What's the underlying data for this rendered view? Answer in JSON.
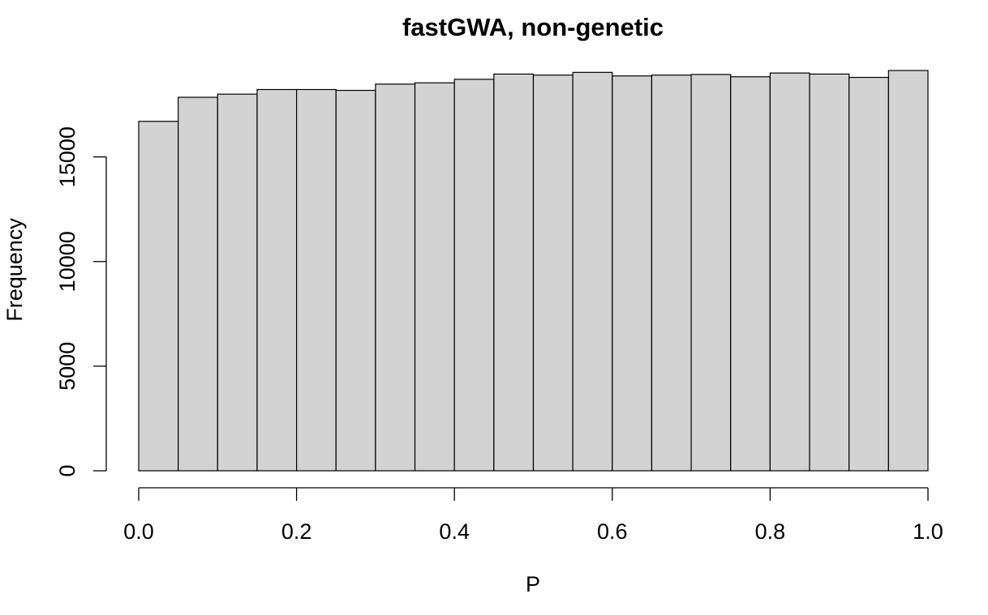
{
  "chart_data": {
    "type": "bar",
    "title": "fastGWA, non-genetic",
    "xlabel": "P",
    "ylabel": "Frequency",
    "bin_edges": [
      0.0,
      0.05,
      0.1,
      0.15,
      0.2,
      0.25,
      0.3,
      0.35,
      0.4,
      0.45,
      0.5,
      0.55,
      0.6,
      0.65,
      0.7,
      0.75,
      0.8,
      0.85,
      0.9,
      0.95,
      1.0
    ],
    "values": [
      16700,
      17850,
      18000,
      18220,
      18220,
      18180,
      18480,
      18540,
      18710,
      18960,
      18910,
      19040,
      18870,
      18910,
      18940,
      18830,
      19010,
      18960,
      18800,
      19130
    ],
    "xlim": [
      0.0,
      1.0
    ],
    "ylim": [
      0,
      19130
    ],
    "x_ticks": [
      0.0,
      0.2,
      0.4,
      0.6,
      0.8,
      1.0
    ],
    "x_tick_labels": [
      "0.0",
      "0.2",
      "0.4",
      "0.6",
      "0.8",
      "1.0"
    ],
    "y_ticks": [
      0,
      5000,
      10000,
      15000
    ],
    "y_tick_labels": [
      "0",
      "5000",
      "10000",
      "15000"
    ],
    "bar_fill": "#d3d3d3",
    "bar_stroke": "#000000",
    "grid": false,
    "legend": "none"
  }
}
